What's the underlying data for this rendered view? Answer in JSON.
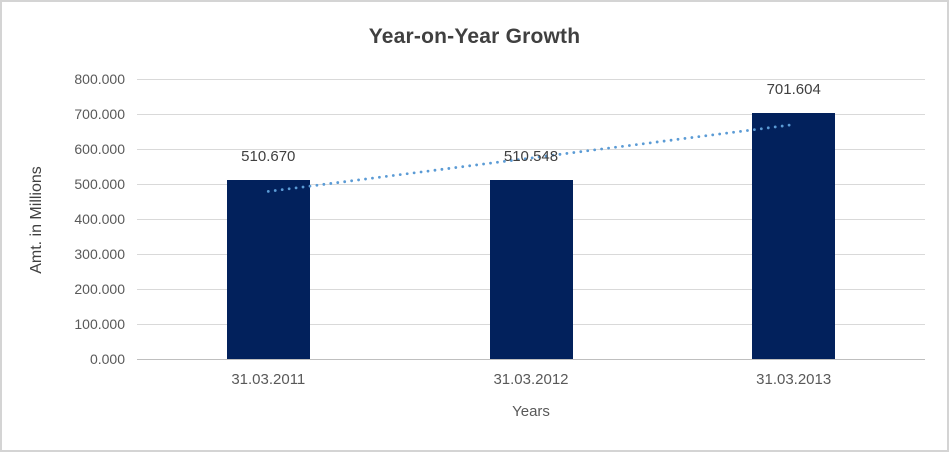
{
  "chart_data": {
    "type": "bar",
    "title": "Year-on-Year Growth",
    "xlabel": "Years",
    "ylabel": "Amt. in Millions",
    "categories": [
      "31.03.2011",
      "31.03.2012",
      "31.03.2013"
    ],
    "values": [
      510.67,
      510.548,
      701.604
    ],
    "data_labels": [
      "510.670",
      "510.548",
      "701.604"
    ],
    "ylim": [
      0,
      800
    ],
    "ytick_interval": 100,
    "ytick_labels": [
      "0.000",
      "100.000",
      "200.000",
      "300.000",
      "400.000",
      "500.000",
      "600.000",
      "700.000",
      "800.000"
    ],
    "grid": true,
    "legend": "none",
    "trendline": {
      "type": "linear",
      "style": "dotted"
    },
    "colors": {
      "bar": "#02215C",
      "trendline": "#5B9BD5",
      "title_text": "#404040",
      "axis_text": "#595959",
      "data_label_text": "#404040",
      "gridline": "#D9D9D9",
      "axis_line": "#BFBFBF",
      "frame_border": "#D4D4D4",
      "background": "#FFFFFF"
    }
  }
}
